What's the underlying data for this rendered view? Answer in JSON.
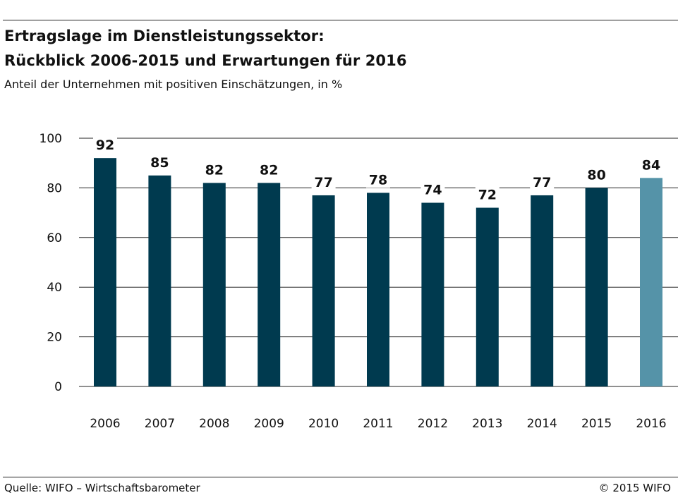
{
  "header": {
    "title_line1": "Ertragslage im Dienstleistungssektor:",
    "title_line2": "Rückblick 2006-2015 und Erwartungen für 2016",
    "subtitle": "Anteil der Unternehmen mit positiven Einschätzungen, in %"
  },
  "footer": {
    "source": "Quelle: WIFO – Wirtschaftsbarometer",
    "copyright": "© 2015 WIFO"
  },
  "colors": {
    "bar": "#003a4f",
    "bar_highlight": "#5593a8",
    "grid": "#222222",
    "text": "#111111"
  },
  "chart_data": {
    "type": "bar",
    "categories": [
      "2006",
      "2007",
      "2008",
      "2009",
      "2010",
      "2011",
      "2012",
      "2013",
      "2014",
      "2015",
      "2016"
    ],
    "values": [
      92,
      85,
      82,
      82,
      77,
      78,
      74,
      72,
      77,
      80,
      84
    ],
    "highlight_index": 10,
    "ylim": [
      0,
      100
    ],
    "yticks": [
      0,
      20,
      40,
      60,
      80,
      100
    ],
    "grid": true,
    "data_labels": true,
    "legend": "none"
  }
}
